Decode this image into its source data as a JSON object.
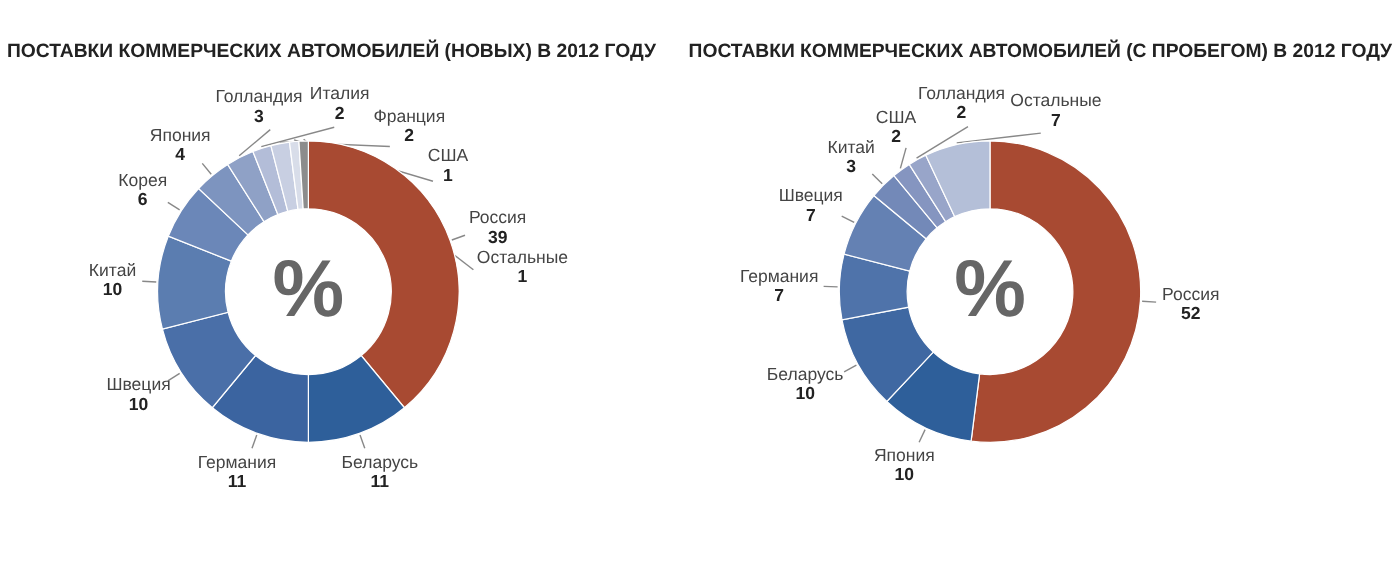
{
  "chart_data": [
    {
      "type": "donut",
      "title": "ПОСТАВКИ КОММЕРЧЕСКИХ АВТОМОБИЛЕЙ (НОВЫХ) В 2012 ГОДУ",
      "categories": [
        "Россия",
        "Беларусь",
        "Германия",
        "Швеция",
        "Китай",
        "Корея",
        "Япония",
        "Голландия",
        "Италия",
        "Франция",
        "США",
        "Остальные"
      ],
      "values": [
        39,
        11,
        11,
        10,
        10,
        6,
        4,
        3,
        2,
        2,
        1,
        1
      ],
      "colors": [
        "#a84a32",
        "#2e5f9a",
        "#3b64a0",
        "#4a6fa8",
        "#5b7db0",
        "#6b87b8",
        "#7d94bf",
        "#8fa1c6",
        "#b3bdd8",
        "#c8cfe2",
        "#d8dde9",
        "#8c8c8c"
      ],
      "data_labels": true,
      "annotations": [
        "%"
      ]
    },
    {
      "type": "donut",
      "title": "ПОСТАВКИ КОММЕРЧЕСКИХ АВТОМОБИЛЕЙ (С ПРОБЕГОМ) В 2012 ГОДУ",
      "categories": [
        "Россия",
        "Япония",
        "Беларусь",
        "Германия",
        "Швеция",
        "Китай",
        "США",
        "Голландия",
        "Остальные"
      ],
      "values": [
        52,
        10,
        10,
        7,
        7,
        3,
        2,
        2,
        7
      ],
      "colors": [
        "#a84a32",
        "#2e5f9a",
        "#3f68a2",
        "#4f73aa",
        "#6481b3",
        "#7389b8",
        "#8595c0",
        "#98a5c9",
        "#b4bfd8"
      ],
      "data_labels": true,
      "annotations": [
        "%"
      ]
    }
  ]
}
